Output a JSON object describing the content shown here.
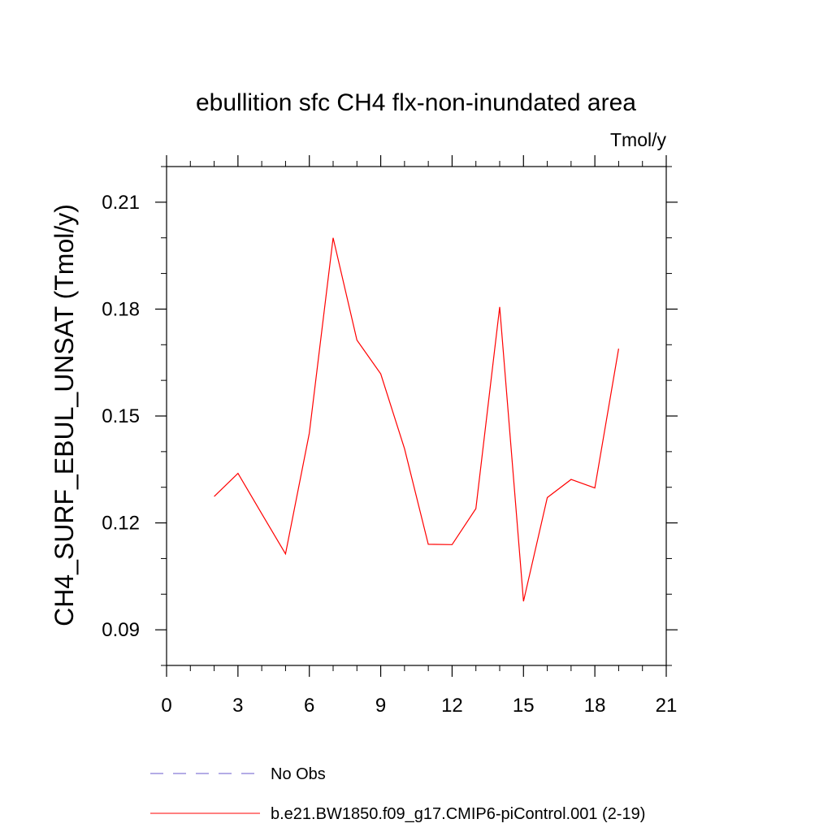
{
  "chart_data": {
    "type": "line",
    "title": "ebullition sfc CH4 flx-non-inundated area",
    "units": "Tmol/y",
    "xlabel": "",
    "ylabel": "CH4_SURF_EBUL_UNSAT  (Tmol/y)",
    "xlim": [
      0,
      21
    ],
    "ylim": [
      0.08,
      0.22
    ],
    "xticks": [
      0,
      3,
      6,
      9,
      12,
      15,
      18,
      21
    ],
    "xtick_labels": [
      "0",
      "3",
      "6",
      "9",
      "12",
      "15",
      "18",
      "21"
    ],
    "yticks": [
      0.09,
      0.12,
      0.15,
      0.18,
      0.21
    ],
    "ytick_labels": [
      "0.09",
      "0.12",
      "0.15",
      "0.18",
      "0.21"
    ],
    "x_minor_step": 1,
    "y_minor_step": 0.01,
    "grid": false,
    "series": [
      {
        "name": "b.e21.BW1850.f09_g17.CMIP6-piControl.001 (2-19)",
        "color": "#ff0000",
        "dash": "solid",
        "x": [
          2,
          3,
          4,
          5,
          6,
          7,
          8,
          9,
          10,
          11,
          12,
          13,
          14,
          15,
          16,
          17,
          18,
          19
        ],
        "values": [
          0.1274,
          0.1339,
          0.1226,
          0.1113,
          0.1452,
          0.2,
          0.1713,
          0.1618,
          0.1408,
          0.114,
          0.1139,
          0.124,
          0.1806,
          0.098,
          0.1271,
          0.1322,
          0.1298,
          0.1689
        ]
      }
    ],
    "legend": [
      {
        "label": "No Obs",
        "color": "#6a5acd",
        "dash": "dashed"
      },
      {
        "label": "b.e21.BW1850.f09_g17.CMIP6-piControl.001 (2-19)",
        "color": "#ff0000",
        "dash": "solid"
      }
    ],
    "legend_position": "bottom"
  }
}
